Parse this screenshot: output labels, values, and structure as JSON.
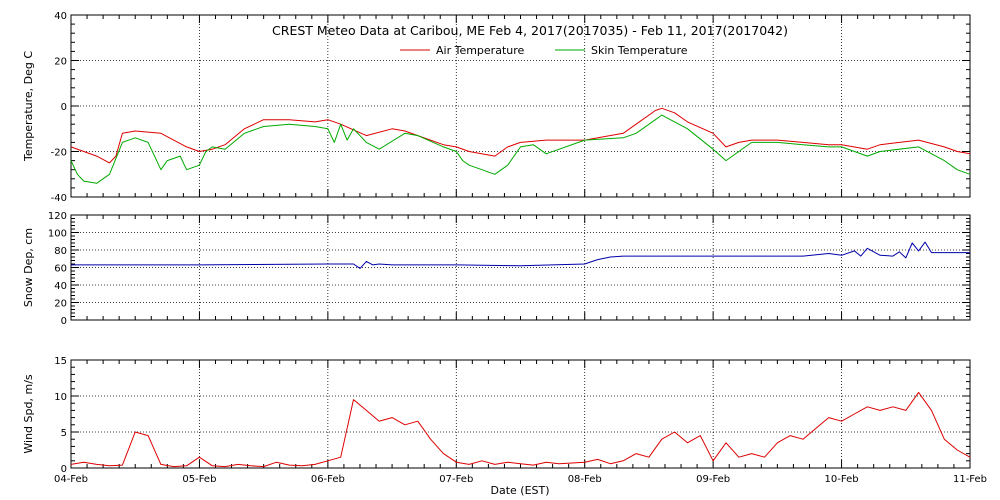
{
  "title": "CREST Meteo Data at Caribou, ME   Feb  4, 2017(2017035) - Feb 11, 2017(2017042)",
  "xlabel": "Date (EST)",
  "colors": {
    "air": "#dd0000",
    "skin": "#00aa00",
    "snow": "#0000aa",
    "wind": "#dd0000",
    "grid": "#000000"
  },
  "chart_data": [
    {
      "type": "line",
      "ylabel": "Temperature, Deg C",
      "ylim": [
        -40,
        40
      ],
      "yticks": [
        "-40",
        "-20",
        "0",
        "20",
        "40"
      ],
      "xticks": [
        "04-Feb",
        "05-Feb",
        "06-Feb",
        "07-Feb",
        "08-Feb",
        "09-Feb",
        "10-Feb",
        "11-Feb"
      ],
      "xlim_days": [
        0,
        7
      ],
      "grid": true,
      "legend": "top-center",
      "series": [
        {
          "name": "Air Temperature",
          "x": [
            0,
            0.1,
            0.2,
            0.3,
            0.35,
            0.4,
            0.5,
            0.7,
            0.9,
            1.0,
            1.1,
            1.2,
            1.35,
            1.5,
            1.7,
            1.9,
            2.0,
            2.1,
            2.3,
            2.5,
            2.6,
            2.7,
            2.9,
            3.0,
            3.1,
            3.3,
            3.4,
            3.5,
            3.7,
            4.0,
            4.3,
            4.4,
            4.55,
            4.6,
            4.7,
            4.8,
            5.0,
            5.1,
            5.2,
            5.3,
            5.5,
            5.7,
            5.9,
            6.0,
            6.2,
            6.3,
            6.6,
            6.8,
            6.9,
            7.0
          ],
          "y": [
            -18,
            -20,
            -22,
            -25,
            -22,
            -12,
            -11,
            -12,
            -18,
            -20,
            -19,
            -17,
            -10,
            -6,
            -6,
            -7,
            -6,
            -8,
            -13,
            -10,
            -11,
            -13,
            -17,
            -18,
            -20,
            -22,
            -18,
            -16,
            -15,
            -15,
            -12,
            -8,
            -2,
            -1,
            -3,
            -7,
            -12,
            -18,
            -16,
            -15,
            -15,
            -16,
            -17,
            -17,
            -19,
            -17,
            -15,
            -18,
            -20,
            -21
          ]
        },
        {
          "name": "Skin Temperature",
          "x": [
            0,
            0.05,
            0.1,
            0.2,
            0.3,
            0.4,
            0.5,
            0.6,
            0.7,
            0.75,
            0.85,
            0.9,
            1.0,
            1.05,
            1.1,
            1.2,
            1.35,
            1.5,
            1.7,
            1.9,
            2.0,
            2.05,
            2.1,
            2.15,
            2.2,
            2.3,
            2.4,
            2.6,
            2.7,
            2.9,
            3.0,
            3.05,
            3.1,
            3.2,
            3.3,
            3.4,
            3.5,
            3.6,
            3.7,
            4.0,
            4.3,
            4.4,
            4.55,
            4.6,
            4.7,
            4.8,
            5.0,
            5.1,
            5.2,
            5.3,
            5.5,
            5.7,
            5.9,
            6.0,
            6.2,
            6.3,
            6.6,
            6.8,
            6.9,
            7.0
          ],
          "y": [
            -24,
            -30,
            -33,
            -34,
            -30,
            -16,
            -14,
            -16,
            -28,
            -24,
            -22,
            -28,
            -26,
            -20,
            -18,
            -19,
            -12,
            -9,
            -8,
            -9,
            -10,
            -16,
            -8,
            -15,
            -10,
            -16,
            -19,
            -12,
            -13,
            -18,
            -20,
            -24,
            -26,
            -28,
            -30,
            -26,
            -18,
            -17,
            -21,
            -15,
            -14,
            -12,
            -6,
            -4,
            -7,
            -10,
            -19,
            -24,
            -20,
            -16,
            -16,
            -17,
            -18,
            -18,
            -22,
            -20,
            -18,
            -24,
            -28,
            -30
          ]
        }
      ]
    },
    {
      "type": "line",
      "ylabel": "Snow Dep, cm",
      "ylim": [
        0,
        120
      ],
      "yticks": [
        "0",
        "20",
        "40",
        "60",
        "80",
        "100",
        "120"
      ],
      "xticks": [
        "04-Feb",
        "05-Feb",
        "06-Feb",
        "07-Feb",
        "08-Feb",
        "09-Feb",
        "10-Feb",
        "11-Feb"
      ],
      "xlim_days": [
        0,
        7
      ],
      "grid": true,
      "series": [
        {
          "name": "",
          "x": [
            0,
            1.0,
            2.0,
            2.2,
            2.25,
            2.3,
            2.35,
            2.4,
            2.5,
            3.0,
            3.5,
            4.0,
            4.1,
            4.2,
            4.3,
            4.5,
            5.0,
            5.5,
            5.7,
            5.9,
            6.0,
            6.1,
            6.15,
            6.2,
            6.3,
            6.4,
            6.45,
            6.5,
            6.55,
            6.6,
            6.65,
            6.7,
            7.0
          ],
          "y": [
            63,
            63,
            64,
            64,
            59,
            67,
            63,
            64,
            63,
            63,
            62,
            64,
            69,
            72,
            73,
            73,
            73,
            73,
            73,
            76,
            74,
            79,
            73,
            82,
            74,
            73,
            78,
            71,
            88,
            79,
            89,
            77,
            77
          ]
        }
      ]
    },
    {
      "type": "line",
      "ylabel": "Wind Spd, m/s",
      "ylim": [
        0,
        15
      ],
      "yticks": [
        "0",
        "5",
        "10",
        "15"
      ],
      "xticks": [
        "04-Feb",
        "05-Feb",
        "06-Feb",
        "07-Feb",
        "08-Feb",
        "09-Feb",
        "10-Feb",
        "11-Feb"
      ],
      "xlim_days": [
        0,
        7
      ],
      "grid": true,
      "series": [
        {
          "name": "",
          "x": [
            0,
            0.1,
            0.2,
            0.3,
            0.4,
            0.5,
            0.6,
            0.7,
            0.8,
            0.9,
            1.0,
            1.1,
            1.2,
            1.3,
            1.4,
            1.5,
            1.6,
            1.7,
            1.8,
            1.9,
            2.0,
            2.1,
            2.2,
            2.3,
            2.4,
            2.5,
            2.6,
            2.7,
            2.8,
            2.9,
            3.0,
            3.1,
            3.2,
            3.3,
            3.4,
            3.5,
            3.6,
            3.7,
            3.8,
            3.9,
            4.0,
            4.1,
            4.2,
            4.3,
            4.4,
            4.5,
            4.6,
            4.7,
            4.8,
            4.9,
            5.0,
            5.1,
            5.2,
            5.3,
            5.4,
            5.5,
            5.6,
            5.7,
            5.8,
            5.9,
            6.0,
            6.1,
            6.2,
            6.3,
            6.4,
            6.5,
            6.6,
            6.7,
            6.8,
            6.9,
            7.0
          ],
          "y": [
            0.5,
            0.8,
            0.5,
            0.3,
            0.4,
            5.0,
            4.5,
            0.5,
            0.2,
            0.3,
            1.5,
            0.3,
            0.2,
            0.5,
            0.3,
            0.2,
            0.8,
            0.4,
            0.3,
            0.5,
            1.0,
            1.5,
            9.5,
            8.0,
            6.5,
            7.0,
            6.0,
            6.5,
            4.0,
            2.0,
            0.8,
            0.5,
            1.0,
            0.5,
            0.8,
            0.6,
            0.4,
            0.8,
            0.6,
            0.7,
            0.8,
            1.2,
            0.6,
            1.0,
            2.0,
            1.5,
            4.0,
            5.0,
            3.5,
            4.5,
            1.0,
            3.5,
            1.5,
            2.0,
            1.5,
            3.5,
            4.5,
            4.0,
            5.5,
            7.0,
            6.5,
            7.5,
            8.5,
            8.0,
            8.5,
            8.0,
            10.5,
            8.0,
            4.0,
            2.5,
            1.5
          ]
        }
      ]
    }
  ]
}
